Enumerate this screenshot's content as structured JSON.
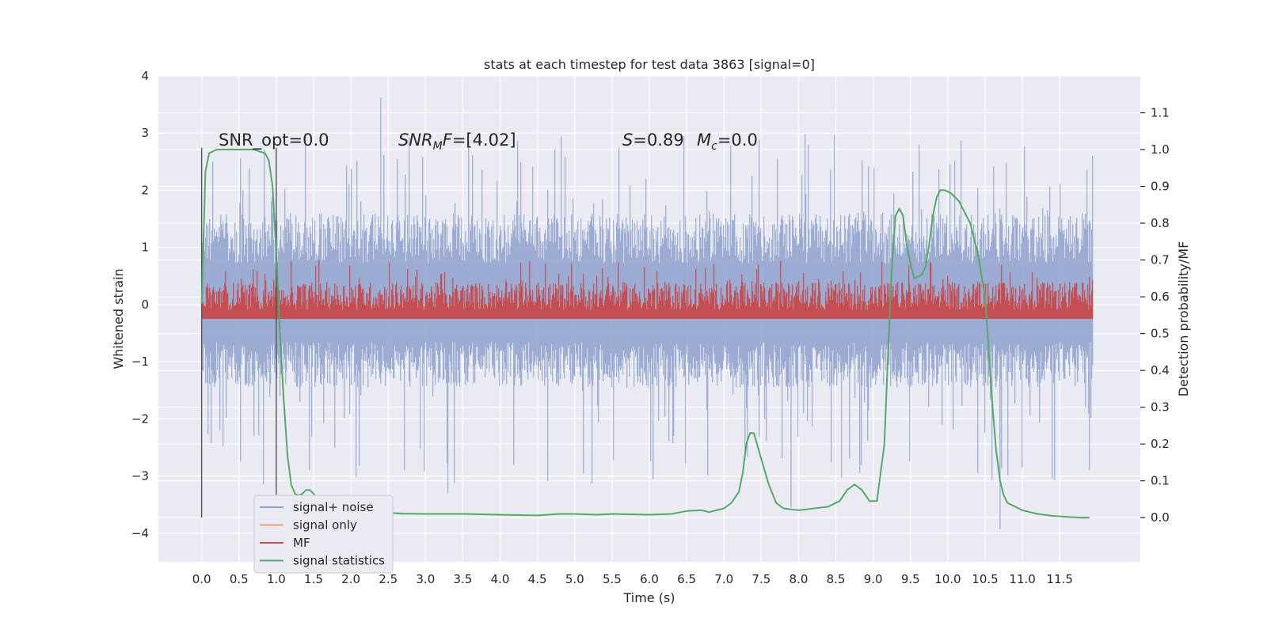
{
  "chart_data": {
    "type": "line",
    "title": "stats at each timestep for test data 3863 [signal=0]",
    "xlabel": "Time (s)",
    "ylabel": "Whitened strain",
    "y2label": "Detection probability/MF",
    "xlim": [
      -0.58,
      12.58
    ],
    "ylim": [
      -4.5,
      4.0
    ],
    "y2lim": [
      -0.12,
      1.2
    ],
    "x_ticks": [
      0.0,
      0.5,
      1.0,
      1.5,
      2.0,
      2.5,
      3.0,
      3.5,
      4.0,
      4.5,
      5.0,
      5.5,
      6.0,
      6.5,
      7.0,
      7.5,
      8.0,
      8.5,
      9.0,
      9.5,
      10.0,
      10.5,
      11.0,
      11.5
    ],
    "x_tick_labels": [
      "0.0",
      "0.5",
      "1.0",
      "1.5",
      "2.0",
      "2.5",
      "3.0",
      "3.5",
      "4.0",
      "4.5",
      "5.0",
      "5.5",
      "6.0",
      "6.5",
      "7.0",
      "7.5",
      "8.0",
      "8.5",
      "9.0",
      "9.5",
      "10.0",
      "10.5",
      "11.0",
      "11.5"
    ],
    "y_ticks": [
      -4,
      -3,
      -2,
      -1,
      0,
      1,
      2,
      3,
      4
    ],
    "y_tick_labels": [
      "−4",
      "−3",
      "−2",
      "−1",
      "0",
      "1",
      "2",
      "3",
      "4"
    ],
    "y2_ticks": [
      0.0,
      0.1,
      0.2,
      0.3,
      0.4,
      0.5,
      0.6,
      0.7,
      0.8,
      0.9,
      1.0,
      1.1
    ],
    "y2_tick_labels": [
      "0.0",
      "0.1",
      "0.2",
      "0.3",
      "0.4",
      "0.5",
      "0.6",
      "0.7",
      "0.8",
      "0.9",
      "1.0",
      "1.1"
    ],
    "grid": true,
    "legend_position": "lower-left",
    "annotations": {
      "snr_opt": "SNR_opt=0.0",
      "snr_mf_prefix": "SNR",
      "snr_mf_sub": "M",
      "snr_mf_suffix": "F=[4.02]",
      "s_sym": "S",
      "s_val": "=0.89",
      "mc_sym": "M",
      "mc_sub": "c",
      "mc_val": "=0.0"
    },
    "vlines_x": [
      0.0,
      1.0
    ],
    "series": [
      {
        "name": "signal+ noise",
        "axis": "left",
        "color": "#8da0cb",
        "style": "noise",
        "x_range": [
          0.0,
          11.95
        ],
        "envelope_upper": 1.6,
        "envelope_lower": -1.45,
        "peak_max": 3.62,
        "peak_min": -3.93
      },
      {
        "name": "signal only",
        "axis": "left",
        "color": "#e8a07e",
        "style": "line",
        "x": [
          0.0,
          11.95
        ],
        "y": [
          0.0,
          0.0
        ]
      },
      {
        "name": "MF",
        "axis": "right",
        "color": "#c44e52",
        "style": "noise",
        "x_range": [
          0.0,
          11.95
        ],
        "baseline": 0.545,
        "envelope_upper": 0.64,
        "envelope_lower": 0.54,
        "peak_max": 0.7
      },
      {
        "name": "signal statistics",
        "axis": "right",
        "color": "#55a868",
        "style": "line",
        "x": [
          0.0,
          0.05,
          0.1,
          0.15,
          0.2,
          0.3,
          0.5,
          0.7,
          0.85,
          0.9,
          0.95,
          1.0,
          1.05,
          1.1,
          1.15,
          1.2,
          1.25,
          1.3,
          1.35,
          1.4,
          1.45,
          1.5,
          1.55,
          1.6,
          1.7,
          1.8,
          1.9,
          2.0,
          2.1,
          2.2,
          2.3,
          2.4,
          2.5,
          2.7,
          3.0,
          3.5,
          4.0,
          4.5,
          4.8,
          5.0,
          5.3,
          5.5,
          6.0,
          6.3,
          6.5,
          6.7,
          6.8,
          7.0,
          7.1,
          7.2,
          7.25,
          7.3,
          7.35,
          7.4,
          7.5,
          7.6,
          7.7,
          7.8,
          8.0,
          8.2,
          8.4,
          8.55,
          8.65,
          8.75,
          8.85,
          8.95,
          9.05,
          9.15,
          9.2,
          9.25,
          9.3,
          9.35,
          9.4,
          9.45,
          9.5,
          9.55,
          9.6,
          9.65,
          9.7,
          9.75,
          9.8,
          9.85,
          9.9,
          9.95,
          10.0,
          10.05,
          10.1,
          10.15,
          10.2,
          10.3,
          10.4,
          10.5,
          10.55,
          10.6,
          10.65,
          10.7,
          10.75,
          10.8,
          10.85,
          10.9,
          10.95,
          11.0,
          11.1,
          11.2,
          11.4,
          11.6,
          11.8,
          11.9
        ],
        "y": [
          0.58,
          0.94,
          0.99,
          0.995,
          1.0,
          1.0,
          1.0,
          1.0,
          0.99,
          0.97,
          0.9,
          0.72,
          0.5,
          0.32,
          0.17,
          0.09,
          0.065,
          0.06,
          0.065,
          0.075,
          0.075,
          0.065,
          0.05,
          0.04,
          0.03,
          0.03,
          0.035,
          0.038,
          0.035,
          0.025,
          0.018,
          0.015,
          0.013,
          0.011,
          0.01,
          0.01,
          0.008,
          0.006,
          0.01,
          0.01,
          0.008,
          0.01,
          0.008,
          0.01,
          0.018,
          0.02,
          0.015,
          0.025,
          0.04,
          0.07,
          0.12,
          0.2,
          0.23,
          0.23,
          0.16,
          0.09,
          0.04,
          0.025,
          0.02,
          0.025,
          0.03,
          0.045,
          0.075,
          0.09,
          0.075,
          0.045,
          0.045,
          0.2,
          0.45,
          0.68,
          0.82,
          0.84,
          0.82,
          0.74,
          0.69,
          0.65,
          0.655,
          0.66,
          0.68,
          0.74,
          0.82,
          0.87,
          0.89,
          0.89,
          0.886,
          0.88,
          0.87,
          0.86,
          0.84,
          0.8,
          0.72,
          0.6,
          0.45,
          0.3,
          0.18,
          0.1,
          0.06,
          0.04,
          0.035,
          0.03,
          0.025,
          0.02,
          0.015,
          0.01,
          0.005,
          0.002,
          0.0,
          0.0
        ]
      }
    ]
  }
}
